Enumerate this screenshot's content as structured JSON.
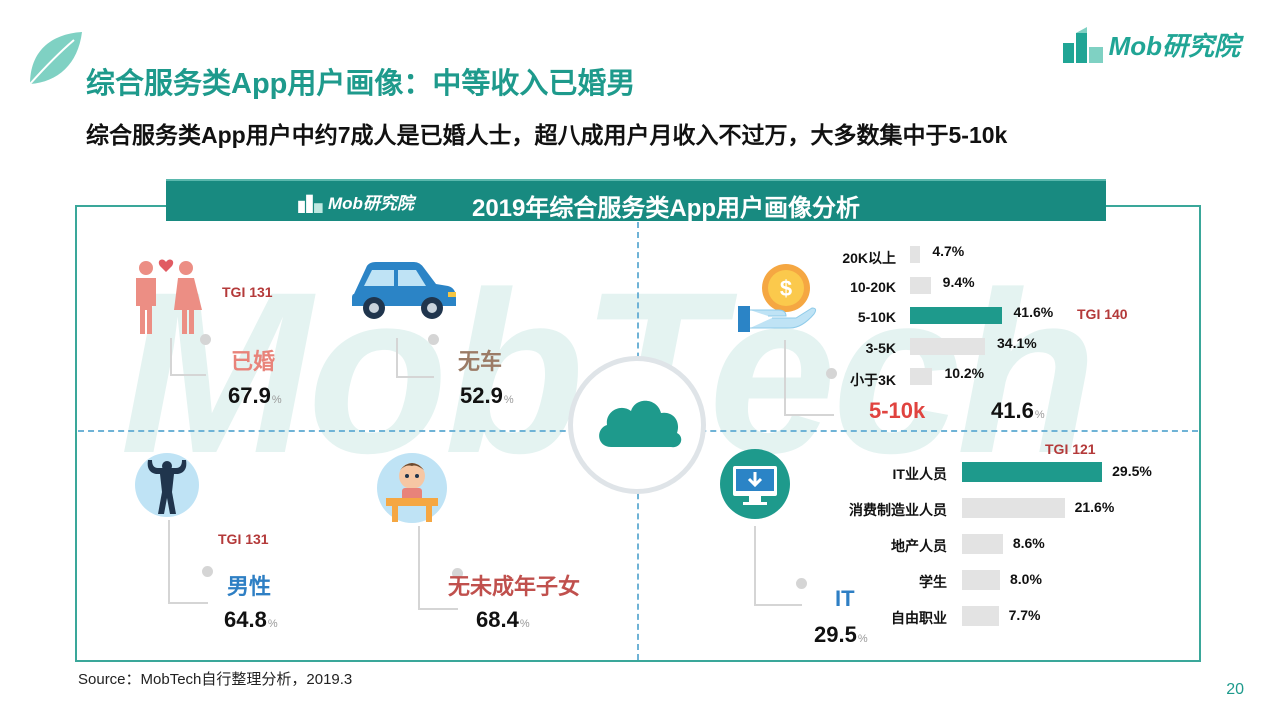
{
  "header": {
    "title": "综合服务类App用户画像：中等收入已婚男",
    "subtitle": "综合服务类App用户中约7成人是已婚人士，超八成用户月收入不过万，大多数集中于5-10k",
    "logo_text": "Mob研究院"
  },
  "banner": {
    "title": "2019年综合服务类App用户画像分析",
    "logo_text": "Mob研究院"
  },
  "watermark": "MobTech",
  "quadrant_stats": [
    {
      "key": "married",
      "tgi": "TGI 131",
      "label": "已婚",
      "value": "67.9",
      "value_num": 67.9,
      "unit": "%",
      "icon": "couple-icon",
      "label_color": "#e8837a"
    },
    {
      "key": "no-car",
      "tgi": "",
      "label": "无车",
      "value": "52.9",
      "value_num": 52.9,
      "unit": "%",
      "icon": "car-icon",
      "label_color": "#9b7b66"
    },
    {
      "key": "male",
      "tgi": "TGI 131",
      "label": "男性",
      "value": "64.8",
      "value_num": 64.8,
      "unit": "%",
      "icon": "bodybuilder-icon",
      "label_color": "#2e7fc4"
    },
    {
      "key": "no-minor-children",
      "tgi": "",
      "label": "无未成年子女",
      "value": "68.4",
      "value_num": 68.4,
      "unit": "%",
      "icon": "baby-icon",
      "label_color": "#c0504d"
    }
  ],
  "income": {
    "highlight_label": "5-10k",
    "highlight_value": "41.6",
    "unit": "%",
    "tgi": "TGI 140",
    "icon": "money-hand-icon"
  },
  "occupation": {
    "highlight_label": "IT",
    "highlight_value": "29.5",
    "unit": "%",
    "tgi": "TGI 121",
    "icon": "monitor-download-icon"
  },
  "chart_data": [
    {
      "type": "bar",
      "orientation": "horizontal",
      "categories": [
        "20K以上",
        "10-20K",
        "5-10K",
        "3-5K",
        "小于3K"
      ],
      "values": [
        4.7,
        9.4,
        41.6,
        34.1,
        10.2
      ],
      "value_labels": [
        "4.7%",
        "9.4%",
        "41.6%",
        "34.1%",
        "10.2%"
      ],
      "highlight_index": 2,
      "colors": {
        "highlight": "#1e9a8c",
        "default": "#e3e3e3"
      }
    },
    {
      "type": "bar",
      "orientation": "horizontal",
      "categories": [
        "IT业人员",
        "消费制造业人员",
        "地产人员",
        "学生",
        "自由职业"
      ],
      "values": [
        29.5,
        21.6,
        8.6,
        8.0,
        7.7
      ],
      "value_labels": [
        "29.5%",
        "21.6%",
        "8.6%",
        "8.0%",
        "7.7%"
      ],
      "highlight_index": 0,
      "colors": {
        "highlight": "#1e9a8c",
        "default": "#e3e3e3"
      }
    }
  ],
  "footer": {
    "source": "Source：MobTech自行整理分析，2019.3",
    "page_number": "20"
  },
  "colors": {
    "brand": "#1e9a8c",
    "banner": "#188a80",
    "tgi": "#b43a3a",
    "income_highlight": "#e0433f",
    "occupation_highlight": "#2e7fc4"
  }
}
